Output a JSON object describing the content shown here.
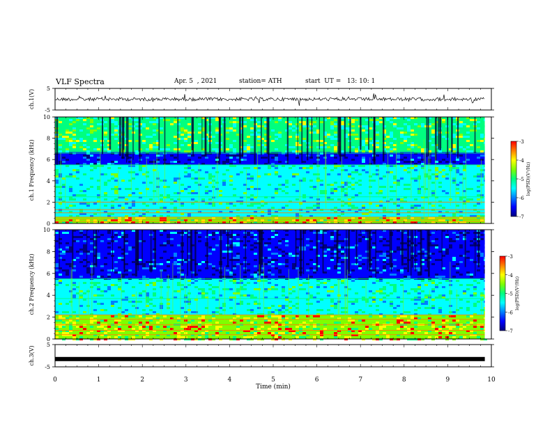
{
  "header": {
    "title": "VLF Spectra",
    "date": "Apr. 5  , 2021",
    "station": "station= ATH",
    "start": "start  UT =   13: 10: 1"
  },
  "chart_data": [
    {
      "type": "line",
      "panel": "ch1-waveform",
      "ylabel": "ch.1(V)",
      "ylim": [
        -5,
        5
      ],
      "yticks": [
        "5",
        "-5"
      ],
      "baseline_v": 0,
      "color": "#000000"
    },
    {
      "type": "heatmap",
      "panel": "ch1-spectrogram",
      "ylabel": "ch.1 Frequency  (kHz)",
      "ylim": [
        0,
        10
      ],
      "yticks": [
        "0",
        "2",
        "4",
        "6",
        "8",
        "10"
      ],
      "colorbar": {
        "label": "log(PSD)(V²/Hz)",
        "range": [
          -7,
          -3
        ],
        "ticks": [
          "-3",
          "-4",
          "-5",
          "-6",
          "-7"
        ]
      },
      "bands_khz": [
        {
          "from": 0,
          "to": 0.6,
          "level": "high"
        },
        {
          "from": 0.6,
          "to": 5.5,
          "level": "medium"
        },
        {
          "from": 5.5,
          "to": 6.7,
          "level": "low"
        },
        {
          "from": 6.7,
          "to": 10,
          "level": "medium-high"
        }
      ]
    },
    {
      "type": "heatmap",
      "panel": "ch2-spectrogram",
      "ylabel": "ch.2 Frequency  (kHz)",
      "ylim": [
        0,
        10
      ],
      "yticks": [
        "0",
        "2",
        "4",
        "6",
        "8",
        "10"
      ],
      "colorbar": {
        "label": "log(PSD)(V²/Hz)",
        "range": [
          -7,
          -3
        ],
        "ticks": [
          "-3",
          "-4",
          "-5",
          "-6",
          "-7"
        ]
      },
      "bands_khz": [
        {
          "from": 0,
          "to": 2.2,
          "level": "high"
        },
        {
          "from": 2.2,
          "to": 5.5,
          "level": "medium"
        },
        {
          "from": 5.5,
          "to": 10,
          "level": "low"
        }
      ]
    },
    {
      "type": "line",
      "panel": "ch3-waveform",
      "ylabel": "ch.3(V)",
      "ylim": [
        -5,
        5
      ],
      "yticks": [
        "5",
        "-5"
      ],
      "baseline_v": -1.5,
      "color": "#000000"
    }
  ],
  "xaxis": {
    "label": "Time  (min)",
    "xlim": [
      0,
      10
    ],
    "ticks": [
      "0",
      "1",
      "2",
      "3",
      "4",
      "5",
      "6",
      "7",
      "8",
      "9",
      "10"
    ]
  },
  "colormap": [
    "#00007f",
    "#0000ff",
    "#007fff",
    "#00ffff",
    "#00ff7f",
    "#7fff00",
    "#ffff00",
    "#ff7f00",
    "#ff0000",
    "#ffffff"
  ]
}
